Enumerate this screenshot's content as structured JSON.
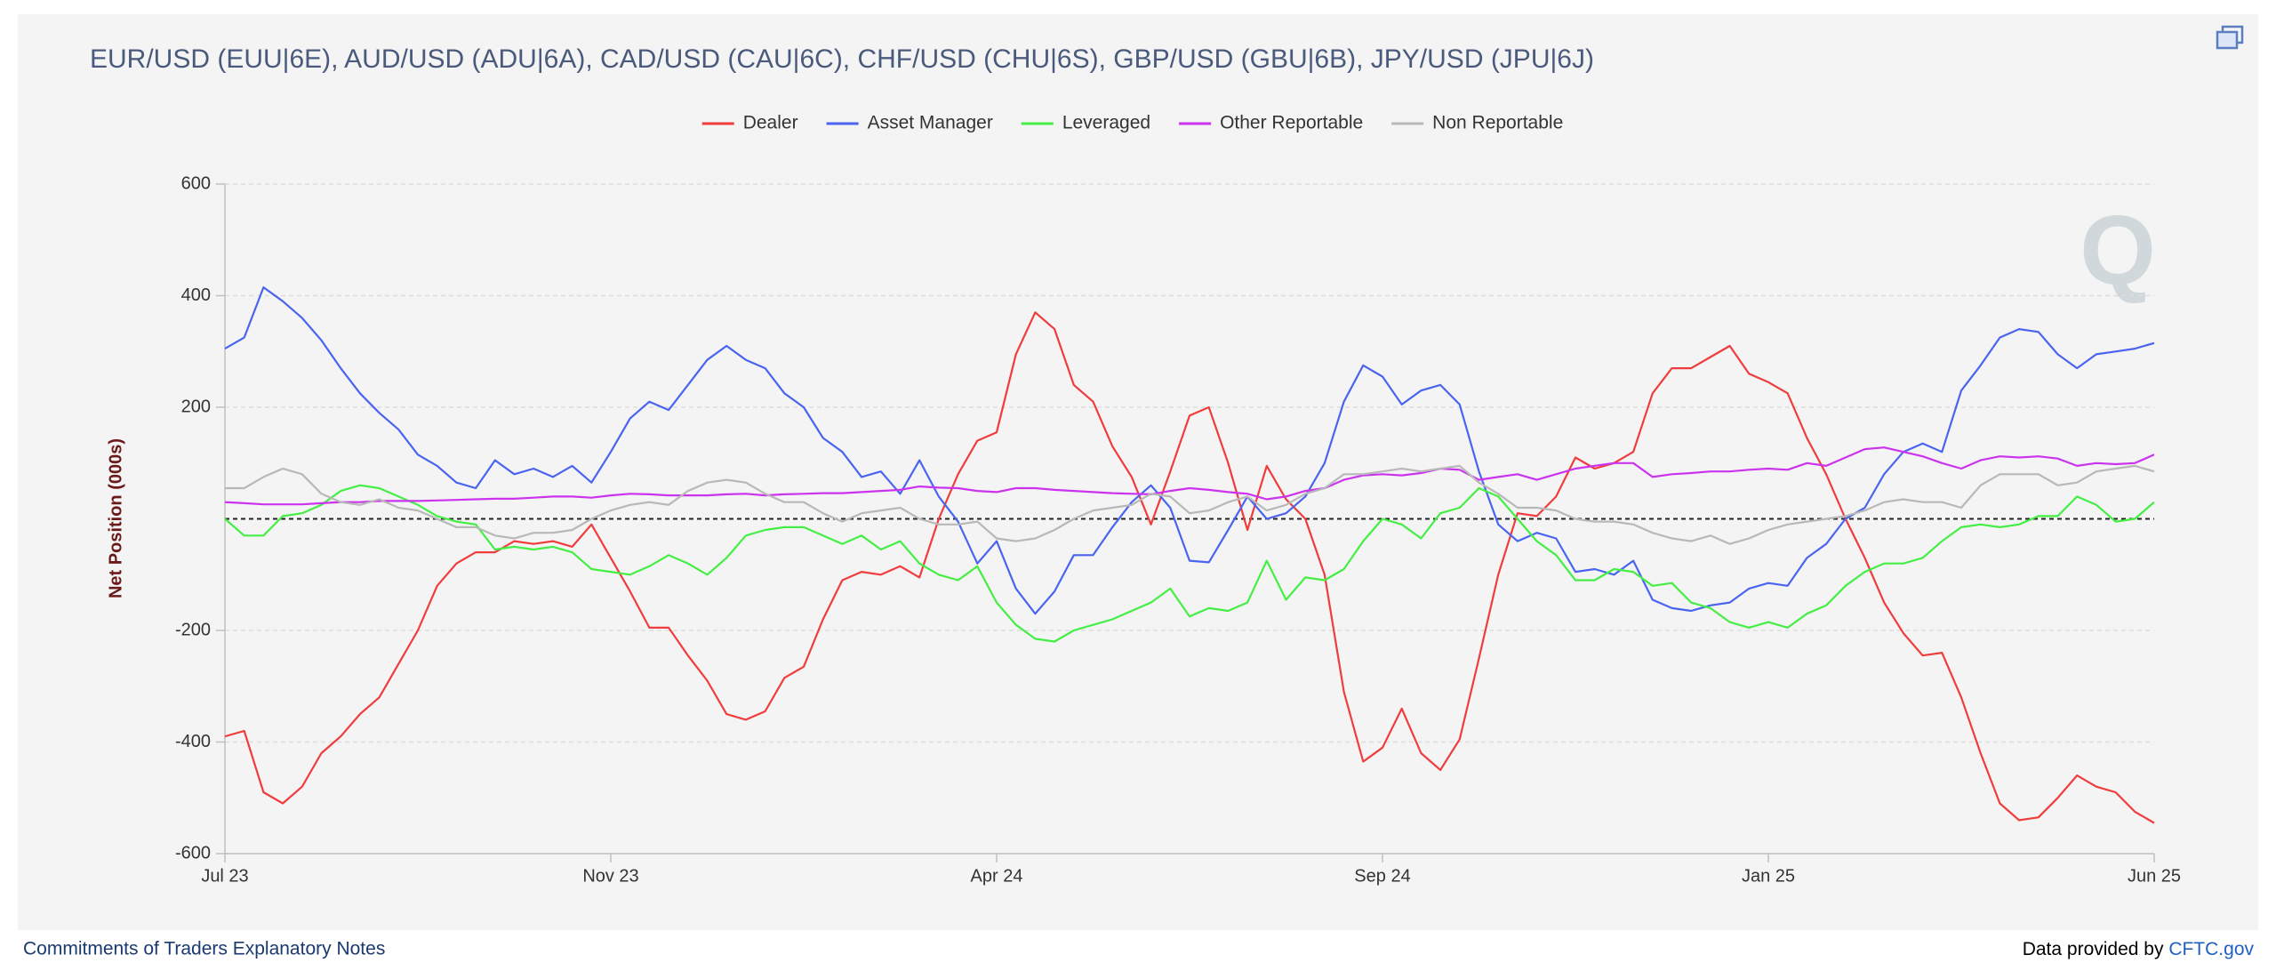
{
  "chart_data": {
    "type": "line",
    "title": "EUR/USD (EUU|6E), AUD/USD (ADU|6A), CAD/USD (CAU|6C), CHF/USD (CHU|6S), GBP/USD (GBU|6B), JPY/USD (JPU|6J)",
    "y_label": "Net Position (000s)",
    "watermark": "Q",
    "categories": [
      "Jul 23",
      null,
      null,
      null,
      null,
      null,
      null,
      null,
      null,
      null,
      null,
      null,
      null,
      null,
      null,
      null,
      null,
      null,
      null,
      null,
      "Nov 23",
      null,
      null,
      null,
      null,
      null,
      null,
      null,
      null,
      null,
      null,
      null,
      null,
      null,
      null,
      null,
      null,
      null,
      null,
      null,
      "Apr 24",
      null,
      null,
      null,
      null,
      null,
      null,
      null,
      null,
      null,
      null,
      null,
      null,
      null,
      null,
      null,
      null,
      null,
      null,
      null,
      "Sep 24",
      null,
      null,
      null,
      null,
      null,
      null,
      null,
      null,
      null,
      null,
      null,
      null,
      null,
      null,
      null,
      null,
      null,
      null,
      null,
      "Jan 25",
      null,
      null,
      null,
      null,
      null,
      null,
      null,
      null,
      null,
      null,
      null,
      null,
      null,
      null,
      null,
      null,
      null,
      null,
      null,
      "Jun 25"
    ],
    "series": [
      {
        "name": "Dealer",
        "color": "#f03c3c",
        "values": [
          -390,
          -380,
          -490,
          -510,
          -480,
          -420,
          -390,
          -350,
          -320,
          -260,
          -200,
          -120,
          -80,
          -60,
          -60,
          -40,
          -45,
          -40,
          -50,
          -10,
          -70,
          -130,
          -195,
          -195,
          -245,
          -290,
          -350,
          -360,
          -345,
          -285,
          -265,
          -180,
          -110,
          -95,
          -100,
          -85,
          -105,
          0,
          80,
          140,
          155,
          295,
          370,
          340,
          240,
          210,
          130,
          75,
          -10,
          85,
          185,
          200,
          100,
          -20,
          95,
          35,
          0,
          -100,
          -310,
          -435,
          -410,
          -340,
          -420,
          -450,
          -395,
          -250,
          -100,
          10,
          5,
          40,
          110,
          90,
          100,
          120,
          225,
          270,
          270,
          290,
          310,
          260,
          245,
          225,
          145,
          80,
          0,
          -70,
          -150,
          -205,
          -245,
          -240,
          -320,
          -420,
          -510,
          -540,
          -535,
          -500,
          -460,
          -480,
          -490,
          -525,
          -545
        ]
      },
      {
        "name": "Asset Manager",
        "color": "#4a64f0",
        "values": [
          305,
          325,
          415,
          390,
          360,
          320,
          270,
          225,
          190,
          160,
          115,
          95,
          65,
          55,
          105,
          80,
          90,
          75,
          95,
          65,
          120,
          180,
          210,
          195,
          240,
          285,
          310,
          285,
          270,
          225,
          200,
          145,
          120,
          75,
          85,
          45,
          105,
          40,
          -5,
          -80,
          -40,
          -125,
          -170,
          -130,
          -65,
          -65,
          -15,
          30,
          60,
          20,
          -75,
          -78,
          -20,
          40,
          0,
          10,
          40,
          100,
          210,
          275,
          255,
          205,
          230,
          240,
          205,
          85,
          -10,
          -40,
          -25,
          -35,
          -95,
          -90,
          -100,
          -75,
          -145,
          -160,
          -165,
          -155,
          -150,
          -125,
          -115,
          -120,
          -70,
          -45,
          0,
          20,
          80,
          120,
          135,
          120,
          230,
          275,
          325,
          340,
          335,
          295,
          270,
          295,
          300,
          305,
          315
        ]
      },
      {
        "name": "Leveraged",
        "color": "#44ee44",
        "values": [
          0,
          -30,
          -30,
          5,
          10,
          25,
          50,
          60,
          55,
          40,
          25,
          5,
          -5,
          -10,
          -55,
          -50,
          -55,
          -50,
          -60,
          -90,
          -95,
          -100,
          -85,
          -65,
          -80,
          -100,
          -70,
          -30,
          -20,
          -15,
          -15,
          -30,
          -45,
          -30,
          -55,
          -40,
          -80,
          -100,
          -110,
          -85,
          -150,
          -190,
          -215,
          -220,
          -200,
          -190,
          -180,
          -165,
          -150,
          -125,
          -175,
          -160,
          -165,
          -150,
          -75,
          -145,
          -105,
          -110,
          -90,
          -40,
          0,
          -10,
          -35,
          10,
          20,
          55,
          40,
          0,
          -40,
          -65,
          -110,
          -110,
          -90,
          -95,
          -120,
          -115,
          -150,
          -160,
          -185,
          -195,
          -185,
          -195,
          -170,
          -155,
          -120,
          -95,
          -80,
          -80,
          -70,
          -40,
          -15,
          -10,
          -15,
          -10,
          5,
          5,
          40,
          25,
          -5,
          0,
          30
        ]
      },
      {
        "name": "Other Reportable",
        "color": "#cc33ee",
        "values": [
          30,
          28,
          26,
          26,
          26,
          28,
          30,
          30,
          32,
          32,
          32,
          33,
          34,
          35,
          36,
          36,
          38,
          40,
          40,
          38,
          42,
          45,
          44,
          42,
          42,
          42,
          44,
          45,
          42,
          44,
          45,
          46,
          46,
          48,
          50,
          52,
          58,
          56,
          55,
          50,
          48,
          55,
          55,
          52,
          50,
          48,
          46,
          45,
          44,
          50,
          55,
          52,
          48,
          45,
          35,
          40,
          50,
          55,
          70,
          78,
          80,
          78,
          82,
          90,
          88,
          70,
          75,
          80,
          70,
          80,
          90,
          95,
          100,
          100,
          75,
          80,
          82,
          85,
          85,
          88,
          90,
          88,
          100,
          95,
          110,
          125,
          128,
          120,
          112,
          100,
          90,
          105,
          112,
          110,
          112,
          108,
          95,
          100,
          98,
          100,
          115
        ]
      },
      {
        "name": "Non Reportable",
        "color": "#b8b8b8",
        "values": [
          55,
          55,
          75,
          90,
          80,
          45,
          30,
          25,
          35,
          20,
          15,
          0,
          -15,
          -15,
          -30,
          -35,
          -25,
          -25,
          -20,
          0,
          15,
          25,
          30,
          25,
          50,
          65,
          70,
          65,
          45,
          30,
          30,
          10,
          -5,
          10,
          15,
          20,
          0,
          -10,
          -10,
          -5,
          -35,
          -40,
          -35,
          -20,
          0,
          15,
          20,
          25,
          45,
          40,
          10,
          15,
          30,
          40,
          15,
          25,
          45,
          55,
          80,
          80,
          85,
          90,
          85,
          90,
          95,
          65,
          45,
          20,
          20,
          15,
          0,
          -5,
          -5,
          -10,
          -25,
          -35,
          -40,
          -30,
          -45,
          -35,
          -20,
          -10,
          -5,
          0,
          5,
          15,
          30,
          35,
          30,
          30,
          20,
          60,
          80,
          80,
          80,
          60,
          65,
          85,
          90,
          95,
          85
        ]
      }
    ],
    "ylim": [
      -600,
      600
    ],
    "yticks": [
      -600,
      -400,
      -200,
      200,
      400,
      600
    ],
    "grid": true,
    "legend": "top"
  },
  "footer": {
    "notes_link": "Commitments of Traders Explanatory Notes",
    "provider_text": "Data provided by ",
    "provider_link": "CFTC.gov"
  }
}
